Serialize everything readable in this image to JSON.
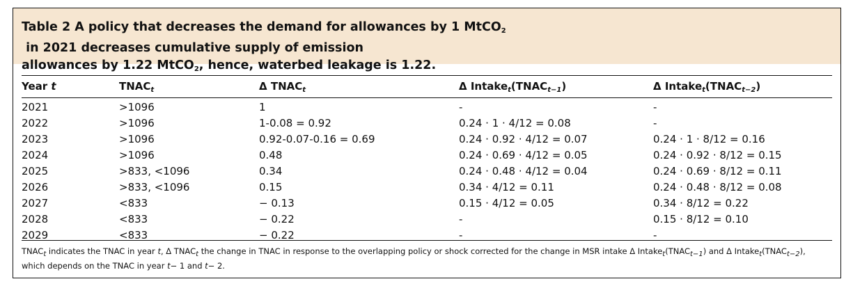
{
  "caption": {
    "line1_a": "Table 2 A policy that decreases the demand for allowances by 1 MtCO",
    "line1_sub": "2",
    "line1_b": " in 2021 decreases cumulative supply of emission",
    "line2_a": "allowances by 1.22 MtCO",
    "line2_sub": "2",
    "line2_b": ", hence, waterbed leakage is 1.22."
  },
  "headers": [
    {
      "main": "Year ",
      "italic": "t",
      "sub": ""
    },
    {
      "main": "TNAC",
      "italic": "",
      "sub": "t"
    },
    {
      "main": "Δ TNAC",
      "italic": "",
      "sub": "t"
    },
    {
      "main": "Δ Intake",
      "italic": "",
      "sub": "t",
      "tail": "(TNAC",
      "sub2": "t−1",
      "end": ")"
    },
    {
      "main": "Δ Intake",
      "italic": "",
      "sub": "t",
      "tail": "(TNAC",
      "sub2": "t−2",
      "end": ")"
    }
  ],
  "rows": [
    [
      "2021",
      ">1096",
      "1",
      "-",
      "-"
    ],
    [
      "2022",
      ">1096",
      "1-0.08 = 0.92",
      "0.24 · 1 · 4/12 = 0.08",
      "-"
    ],
    [
      "2023",
      ">1096",
      "0.92-0.07-0.16 = 0.69",
      "0.24 · 0.92 · 4/12 = 0.07",
      "0.24 · 1 · 8/12 = 0.16"
    ],
    [
      "2024",
      ">1096",
      "0.48",
      "0.24 · 0.69 · 4/12 = 0.05",
      "0.24 · 0.92 · 8/12 = 0.15"
    ],
    [
      "2025",
      ">833, <1096",
      "0.34",
      "0.24 · 0.48 · 4/12 = 0.04",
      "0.24 · 0.69 · 8/12 = 0.11"
    ],
    [
      "2026",
      ">833, <1096",
      "0.15",
      "0.34 · 4/12 = 0.11",
      "0.24 · 0.48 · 8/12 = 0.08"
    ],
    [
      "2027",
      "<833",
      "− 0.13",
      "0.15 · 4/12 = 0.05",
      "0.34 · 8/12 = 0.22"
    ],
    [
      "2028",
      "<833",
      "− 0.22",
      "-",
      "0.15 · 8/12 = 0.10"
    ],
    [
      "2029",
      "<833",
      "− 0.22",
      "-",
      "-"
    ]
  ],
  "note": {
    "p1": "TNAC",
    "p1_sub": "t",
    "p2": " indicates the TNAC in year ",
    "p2_it": "t",
    "p3": ", Δ TNAC",
    "p3_sub": "t",
    "p4": " the change in TNAC in response to the overlapping policy or shock corrected for the change in MSR intake Δ Intake",
    "p4_sub": "t",
    "p5": "(TNAC",
    "p5_sub": "t−1",
    "p6": ") and Δ Intake",
    "p6_sub": "t",
    "p7": "(TNAC",
    "p7_sub": "t−2",
    "p8": "),",
    "line2_a": "which depends on the TNAC in year ",
    "line2_t1": "t",
    "line2_b": "− 1 and ",
    "line2_t2": "t",
    "line2_c": "− 2."
  }
}
